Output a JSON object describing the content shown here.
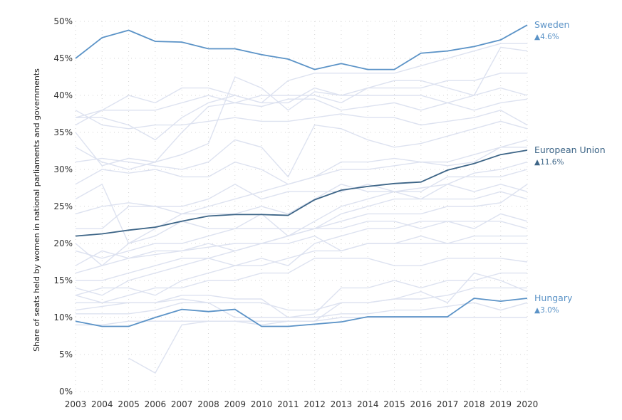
{
  "chart_data": {
    "type": "line",
    "title": "",
    "ylabel": "Share of seats held by women in national parliaments and governments",
    "xlabel": "",
    "x": [
      2003,
      2004,
      2005,
      2006,
      2007,
      2008,
      2009,
      2010,
      2011,
      2012,
      2013,
      2014,
      2015,
      2016,
      2017,
      2018,
      2019,
      2020
    ],
    "ylim": [
      0,
      50
    ],
    "yticks": [
      0,
      5,
      10,
      15,
      20,
      25,
      30,
      35,
      40,
      45,
      50
    ],
    "ytick_labels": [
      "0%",
      "5%",
      "10%",
      "15%",
      "20%",
      "25%",
      "30%",
      "35%",
      "40%",
      "45%",
      "50%"
    ],
    "grid": "dotted",
    "highlighted_series": [
      {
        "name": "Sweden",
        "change": "▲4.6%",
        "color": "#5b93c7",
        "values": [
          45.0,
          47.8,
          48.8,
          47.3,
          47.2,
          46.3,
          46.3,
          45.5,
          44.9,
          43.5,
          44.3,
          43.5,
          43.5,
          45.7,
          46.0,
          46.6,
          47.5,
          49.5
        ]
      },
      {
        "name": "European Union",
        "change": "▲11.6%",
        "color": "#3d6587",
        "values": [
          21.0,
          21.3,
          21.8,
          22.2,
          23.0,
          23.7,
          23.9,
          23.9,
          23.8,
          25.9,
          27.2,
          27.7,
          28.1,
          28.3,
          29.9,
          30.8,
          32.0,
          32.6
        ]
      },
      {
        "name": "Hungary",
        "change": "▲3.0%",
        "color": "#5b93c7",
        "values": [
          9.5,
          8.8,
          8.8,
          10.0,
          11.1,
          10.8,
          11.1,
          8.8,
          8.8,
          9.1,
          9.4,
          10.1,
          10.1,
          10.1,
          10.1,
          12.6,
          12.2,
          12.6
        ]
      }
    ],
    "background_series": [
      [
        37.0,
        38.0,
        40.0,
        39.0,
        41.0,
        41.0,
        40.0,
        39.0,
        42.0,
        43.0,
        43.0,
        43.0,
        43.0,
        44.0,
        45.0,
        46.0,
        47.0,
        47.0
      ],
      [
        36.0,
        38.0,
        38.0,
        38.0,
        39.0,
        40.0,
        39.0,
        40.0,
        40.0,
        40.0,
        39.0,
        41.0,
        41.0,
        41.0,
        42.0,
        42.0,
        43.0,
        43.0
      ],
      [
        37.0,
        37.0,
        36.0,
        34.0,
        37.0,
        39.0,
        40.0,
        39.0,
        39.0,
        41.0,
        40.0,
        41.0,
        42.0,
        42.0,
        41.0,
        40.0,
        46.5,
        46.0
      ],
      [
        35.0,
        30.5,
        31.5,
        31.0,
        32.0,
        33.5,
        42.5,
        41.0,
        38.0,
        40.5,
        40.0,
        40.0,
        40.0,
        40.0,
        39.0,
        40.0,
        41.0,
        40.0
      ],
      [
        33.0,
        31.0,
        30.0,
        31.0,
        35.0,
        38.5,
        39.0,
        38.5,
        39.5,
        39.5,
        38.0,
        38.5,
        39.0,
        38.0,
        39.0,
        38.0,
        39.0,
        39.5
      ],
      [
        38.0,
        36.0,
        35.5,
        36.0,
        36.0,
        36.5,
        37.0,
        36.5,
        36.5,
        37.0,
        37.5,
        37.0,
        37.0,
        36.0,
        36.5,
        37.0,
        38.0,
        36.0
      ],
      [
        31.0,
        31.5,
        31.0,
        30.5,
        30.0,
        31.0,
        34.0,
        33.0,
        29.0,
        36.0,
        35.5,
        34.0,
        33.0,
        33.5,
        34.5,
        35.5,
        36.5,
        35.5
      ],
      [
        28.0,
        30.0,
        29.5,
        30.0,
        29.0,
        29.0,
        31.0,
        30.0,
        28.0,
        29.0,
        31.0,
        31.0,
        31.5,
        31.0,
        30.5,
        31.0,
        33.0,
        34.0
      ],
      [
        26.0,
        28.0,
        20.0,
        22.0,
        24.0,
        25.0,
        26.0,
        27.0,
        28.0,
        29.0,
        30.0,
        30.0,
        30.5,
        31.0,
        31.0,
        32.0,
        33.0,
        33.0
      ],
      [
        24.0,
        25.0,
        25.5,
        25.0,
        25.0,
        26.0,
        28.0,
        26.0,
        27.0,
        27.0,
        27.0,
        28.0,
        27.0,
        27.5,
        28.0,
        29.5,
        30.0,
        31.0
      ],
      [
        22.0,
        22.0,
        25.0,
        25.0,
        24.0,
        24.0,
        24.0,
        25.0,
        24.0,
        26.0,
        28.0,
        27.0,
        27.0,
        27.0,
        29.0,
        29.0,
        29.0,
        30.0
      ],
      [
        20.0,
        17.0,
        20.0,
        21.0,
        23.0,
        22.0,
        22.0,
        24.0,
        21.0,
        23.0,
        25.0,
        26.0,
        27.0,
        26.0,
        28.0,
        27.0,
        28.0,
        27.0
      ],
      [
        19.0,
        18.0,
        19.0,
        20.0,
        20.0,
        21.0,
        22.0,
        22.0,
        22.0,
        22.0,
        24.0,
        25.0,
        26.0,
        26.0,
        26.0,
        26.0,
        27.0,
        26.0
      ],
      [
        17.0,
        19.0,
        18.0,
        19.0,
        19.0,
        19.5,
        20.0,
        20.0,
        21.0,
        22.0,
        23.0,
        24.0,
        24.0,
        24.0,
        25.0,
        25.0,
        25.5,
        28.0
      ],
      [
        16.0,
        17.0,
        18.0,
        18.5,
        19.0,
        20.0,
        19.0,
        20.0,
        21.0,
        22.0,
        22.0,
        23.0,
        23.0,
        22.0,
        23.0,
        22.0,
        24.0,
        23.0
      ],
      [
        15.0,
        15.0,
        16.0,
        17.0,
        18.0,
        18.0,
        17.0,
        18.0,
        17.0,
        20.0,
        21.0,
        22.0,
        22.0,
        23.0,
        23.0,
        23.0,
        23.0,
        22.0
      ],
      [
        14.0,
        13.0,
        15.0,
        16.0,
        17.0,
        18.0,
        19.0,
        20.0,
        20.0,
        21.0,
        19.0,
        20.0,
        20.0,
        21.0,
        20.0,
        21.0,
        21.0,
        21.0
      ],
      [
        13.0,
        14.0,
        14.0,
        13.0,
        15.0,
        16.0,
        17.0,
        17.0,
        18.0,
        19.0,
        19.0,
        20.0,
        20.0,
        20.0,
        20.0,
        20.0,
        20.0,
        20.0
      ],
      [
        12.0,
        12.0,
        13.0,
        14.0,
        14.0,
        15.0,
        15.0,
        16.0,
        16.0,
        18.0,
        18.0,
        18.0,
        17.0,
        17.0,
        18.0,
        18.0,
        18.0,
        17.5
      ],
      [
        11.0,
        11.5,
        12.0,
        12.0,
        13.0,
        13.0,
        12.5,
        12.5,
        10.0,
        10.5,
        14.0,
        14.0,
        15.0,
        14.0,
        15.0,
        15.0,
        16.0,
        16.0
      ],
      [
        10.5,
        10.5,
        10.5,
        11.0,
        12.0,
        12.0,
        12.0,
        12.0,
        11.0,
        11.0,
        12.0,
        12.0,
        12.5,
        12.5,
        13.0,
        14.0,
        14.0,
        14.0
      ],
      [
        null,
        null,
        4.5,
        2.5,
        9.0,
        9.5,
        9.5,
        9.0,
        9.5,
        9.5,
        12.0,
        12.0,
        12.5,
        13.5,
        12.0,
        16.0,
        15.0,
        13.5
      ],
      [
        13.0,
        12.0,
        12.0,
        12.0,
        12.5,
        12.0,
        10.0,
        10.0,
        10.0,
        10.0,
        10.5,
        10.5,
        11.0,
        11.0,
        11.5,
        12.0,
        11.0,
        12.0
      ],
      [
        9.0,
        9.0,
        9.5,
        9.5,
        9.5,
        9.5,
        9.5,
        9.5,
        9.5,
        9.5,
        10.0,
        10.0,
        10.0,
        10.0,
        10.0,
        10.0,
        10.0,
        10.0
      ]
    ]
  }
}
